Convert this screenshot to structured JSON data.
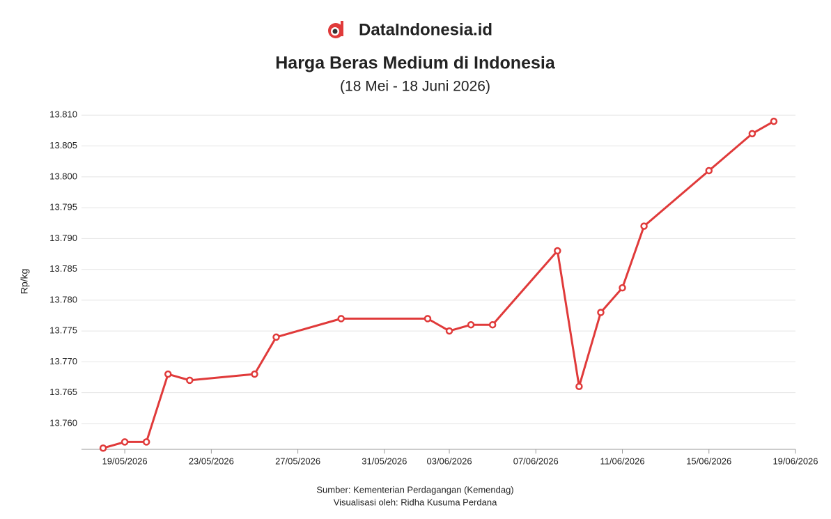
{
  "brand": "DataIndonesia.id",
  "chart_data": {
    "type": "line",
    "title": "Harga Beras Medium di Indonesia",
    "subtitle": "(18 Mei - 18 Juni 2026)",
    "y_label": "Rp/kg",
    "source": "Sumber: Kementerian Perdagangan (Kemendag)",
    "credit": "Visualisasi oleh: Ridha Kusuma Perdana",
    "x": [
      "2026-05-18",
      "2026-05-19",
      "2026-05-20",
      "2026-05-21",
      "2026-05-22",
      "2026-05-25",
      "2026-05-26",
      "2026-05-29",
      "2026-06-02",
      "2026-06-03",
      "2026-06-04",
      "2026-06-05",
      "2026-06-08",
      "2026-06-09",
      "2026-06-10",
      "2026-06-11",
      "2026-06-12",
      "2026-06-15",
      "2026-06-17",
      "2026-06-18"
    ],
    "series": [
      {
        "name": "Harga",
        "color": "#e03a3a",
        "values": [
          13756,
          13757,
          13757,
          13768,
          13767,
          13768,
          13774,
          13777,
          13777,
          13775,
          13776,
          13776,
          13788,
          13766,
          13778,
          13782,
          13792,
          13801,
          13807,
          13809
        ]
      }
    ],
    "xlim": [
      "2026-05-17",
      "2026-06-19"
    ],
    "xticks": [
      {
        "value": "2026-05-19",
        "label": "19/05/2026"
      },
      {
        "value": "2026-05-23",
        "label": "23/05/2026"
      },
      {
        "value": "2026-05-27",
        "label": "27/05/2026"
      },
      {
        "value": "2026-05-31",
        "label": "31/05/2026"
      },
      {
        "value": "2026-06-03",
        "label": "03/06/2026"
      },
      {
        "value": "2026-06-07",
        "label": "07/06/2026"
      },
      {
        "value": "2026-06-11",
        "label": "11/06/2026"
      },
      {
        "value": "2026-06-15",
        "label": "15/06/2026"
      },
      {
        "value": "2026-06-19",
        "label": "19/06/2026"
      }
    ],
    "ylim": [
      13755.8,
      13810.6
    ],
    "yticks": [
      {
        "value": 13760,
        "label": "13.760"
      },
      {
        "value": 13765,
        "label": "13.765"
      },
      {
        "value": 13770,
        "label": "13.770"
      },
      {
        "value": 13775,
        "label": "13.775"
      },
      {
        "value": 13780,
        "label": "13.780"
      },
      {
        "value": 13785,
        "label": "13.785"
      },
      {
        "value": 13790,
        "label": "13.790"
      },
      {
        "value": 13795,
        "label": "13.795"
      },
      {
        "value": 13800,
        "label": "13.800"
      },
      {
        "value": 13805,
        "label": "13.805"
      },
      {
        "value": 13810,
        "label": "13.810"
      }
    ],
    "grid": true
  }
}
